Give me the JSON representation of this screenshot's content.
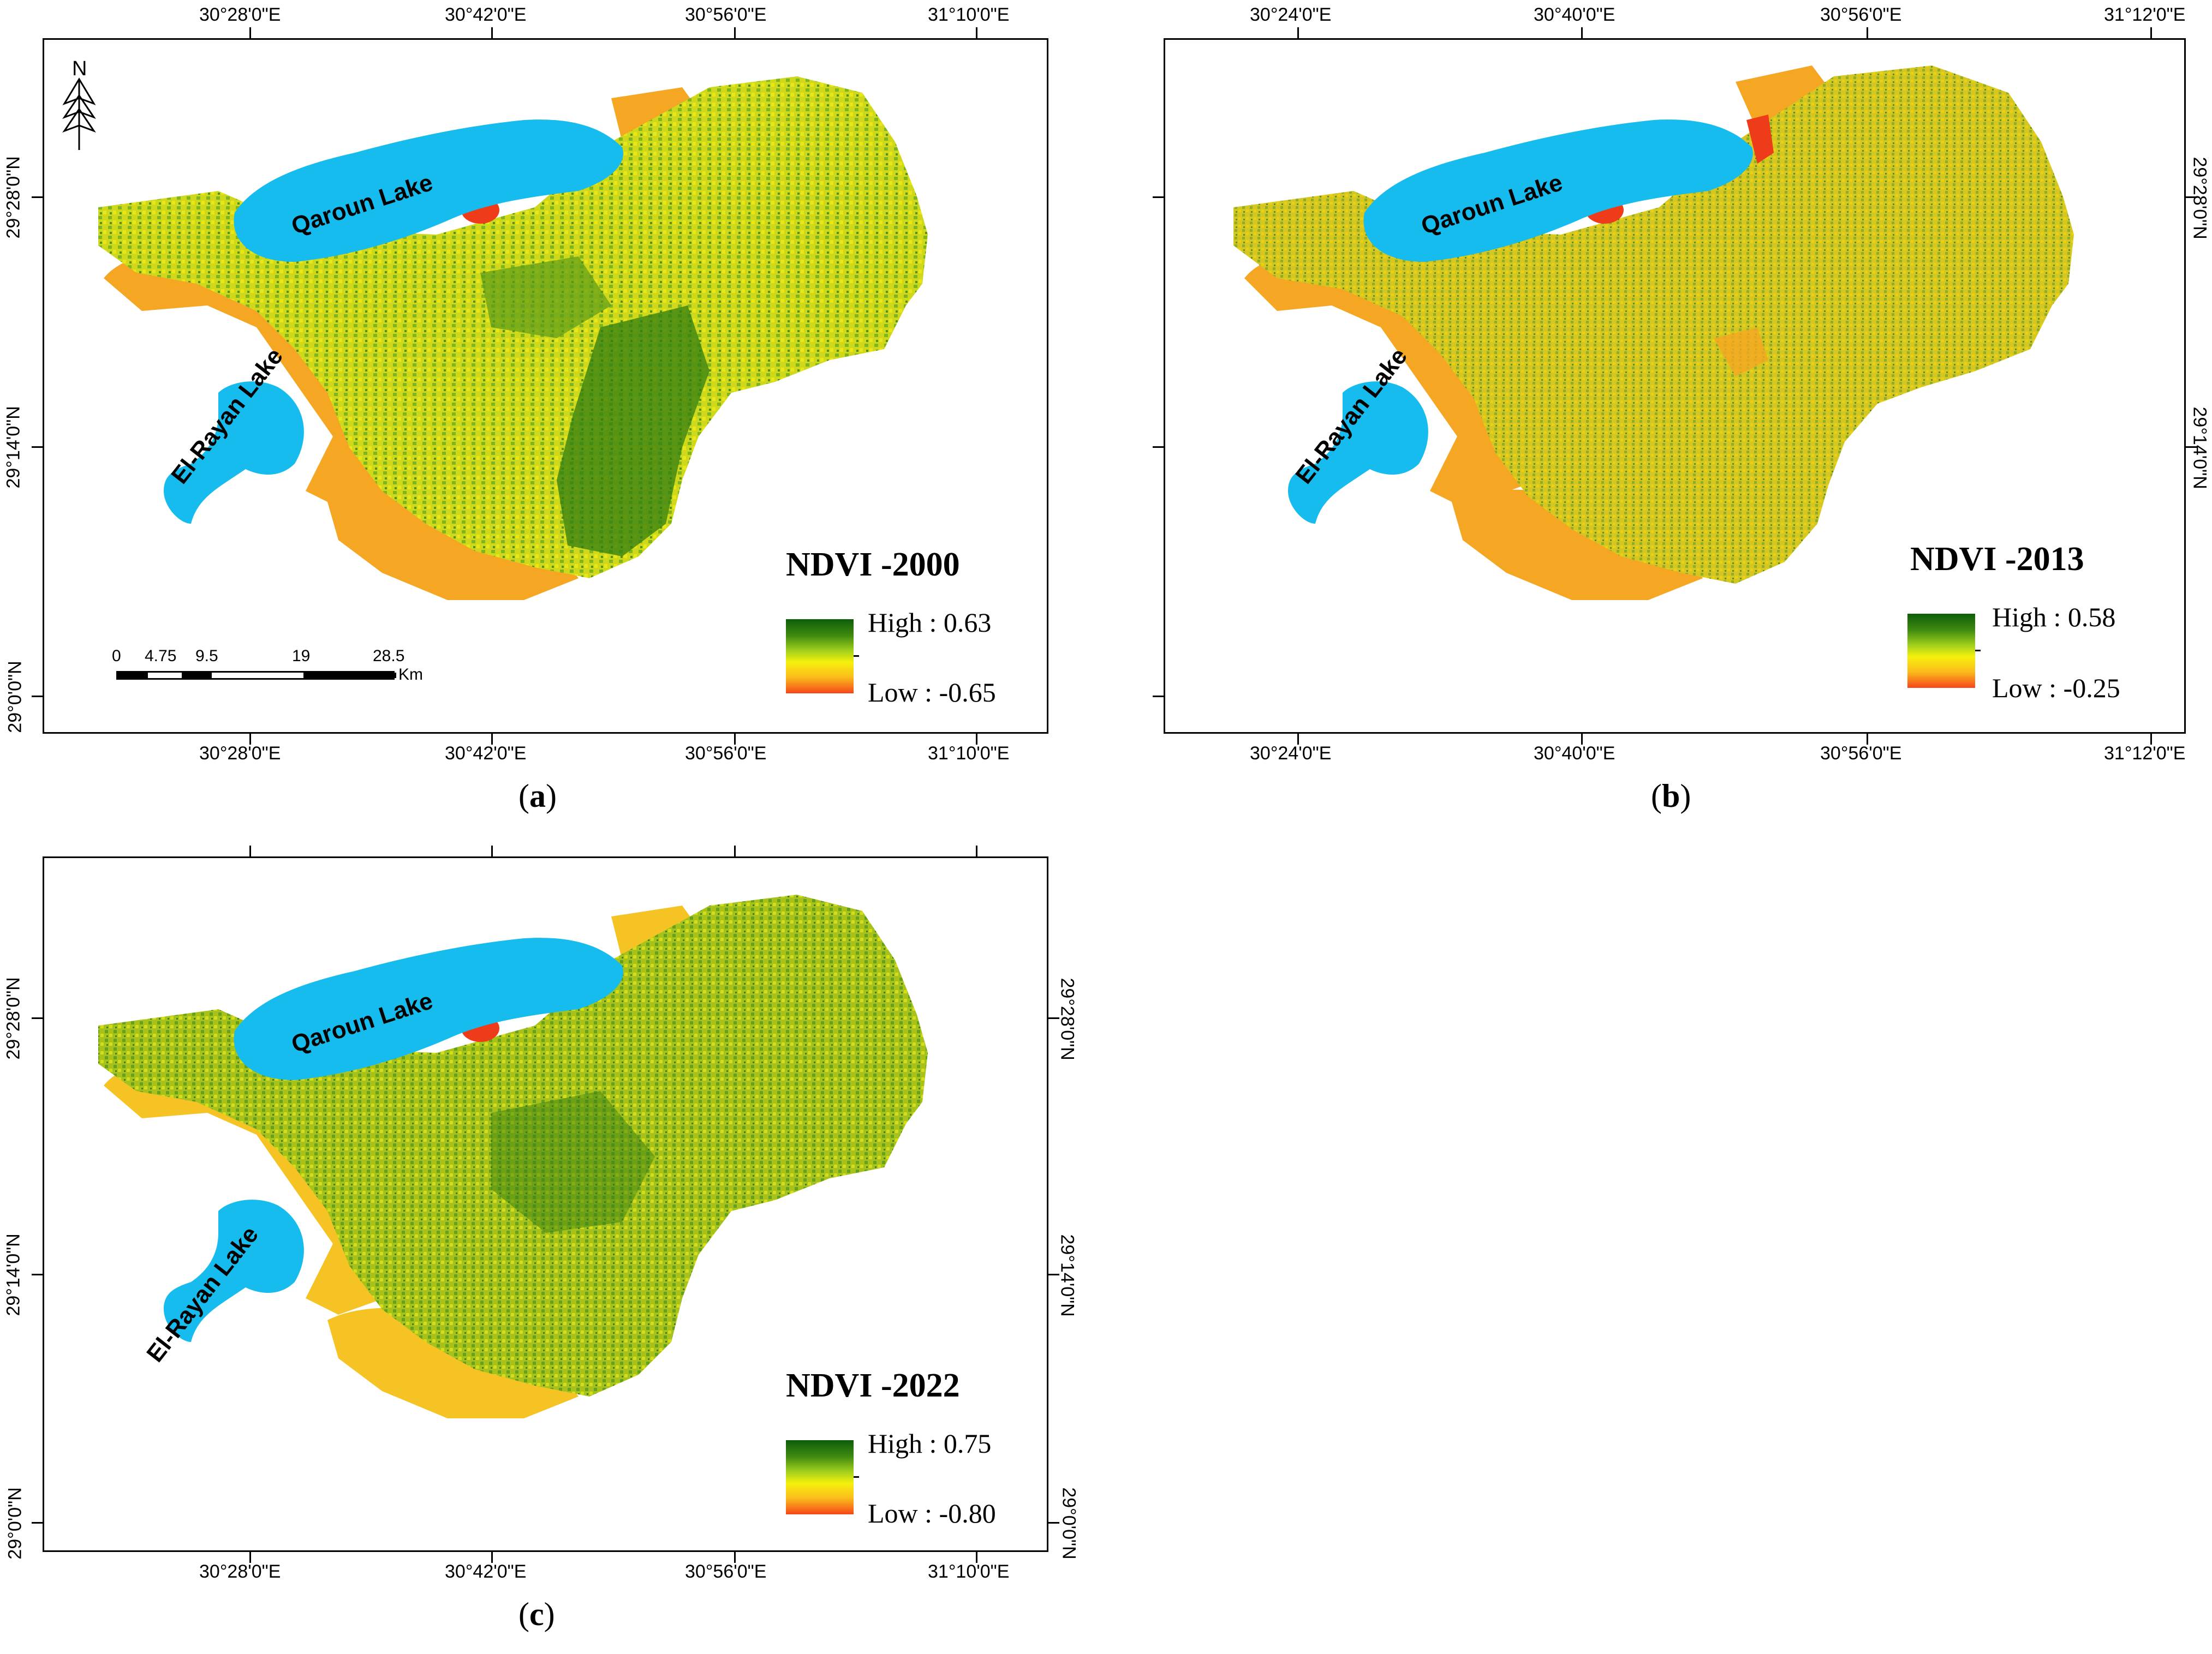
{
  "colors": {
    "water": "#17bcef",
    "desert": "#f5a623",
    "low_veg": "#e4e212",
    "mid_veg": "#9cc71f",
    "high_veg": "#2f7d12",
    "bare_red": "#ee3b1a",
    "frame": "#000000"
  },
  "panels": [
    {
      "id": "a",
      "caption_open": "(",
      "caption_letter": "a",
      "caption_close": ")",
      "title": "NDVI -2000",
      "legend_high": "High : 0.63",
      "legend_low": "Low : -0.65",
      "top_ticks": [
        "30°28'0\"E",
        "30°42'0\"E",
        "30°56'0\"E",
        "31°10'0\"E"
      ],
      "bottom_ticks": [
        "30°28'0\"E",
        "30°42'0\"E",
        "30°56'0\"E",
        "31°10'0\"E"
      ],
      "left_ticks": [
        "29°28'0\"N",
        "29°14'0\"N",
        "29°0'0\"N"
      ],
      "right_ticks": [],
      "lakes": [
        "Qaroun Lake",
        "El-Rayan Lake"
      ],
      "vegetation_level": 0.7
    },
    {
      "id": "b",
      "caption_open": "(",
      "caption_letter": "b",
      "caption_close": ")",
      "title": "NDVI -2013",
      "legend_high": "High : 0.58",
      "legend_low": "Low : -0.25",
      "top_ticks": [
        "30°24'0\"E",
        "30°40'0\"E",
        "30°56'0\"E",
        "31°12'0\"E"
      ],
      "bottom_ticks": [
        "30°24'0\"E",
        "30°40'0\"E",
        "30°56'0\"E",
        "31°12'0\"E"
      ],
      "left_ticks": [],
      "right_ticks": [
        "29°28'0\"N",
        "29°14'0\"N"
      ],
      "lakes": [
        "Qaroun Lake",
        "El-Rayan Lake"
      ],
      "vegetation_level": 0.45
    },
    {
      "id": "c",
      "caption_open": "(",
      "caption_letter": "c",
      "caption_close": ")",
      "title": "NDVI -2022",
      "legend_high": "High : 0.75",
      "legend_low": "Low : -0.80",
      "top_ticks": [],
      "bottom_ticks": [
        "30°28'0\"E",
        "30°42'0\"E",
        "30°56'0\"E",
        "31°10'0\"E"
      ],
      "left_ticks": [
        "29°28'0\"N",
        "29°14'0\"N",
        "29°0'0\"N"
      ],
      "right_ticks": [
        "29°28'0\"N",
        "29°14'0\"N",
        "29°0'0\"N"
      ],
      "lakes": [
        "Qaroun Lake",
        "El-Rayan Lake"
      ],
      "vegetation_level": 0.6
    }
  ],
  "north_arrow": {
    "label": "N"
  },
  "scale_bar": {
    "labels": [
      "0",
      "4.75",
      "9.5",
      "19",
      "28.5"
    ],
    "unit": "Km"
  }
}
